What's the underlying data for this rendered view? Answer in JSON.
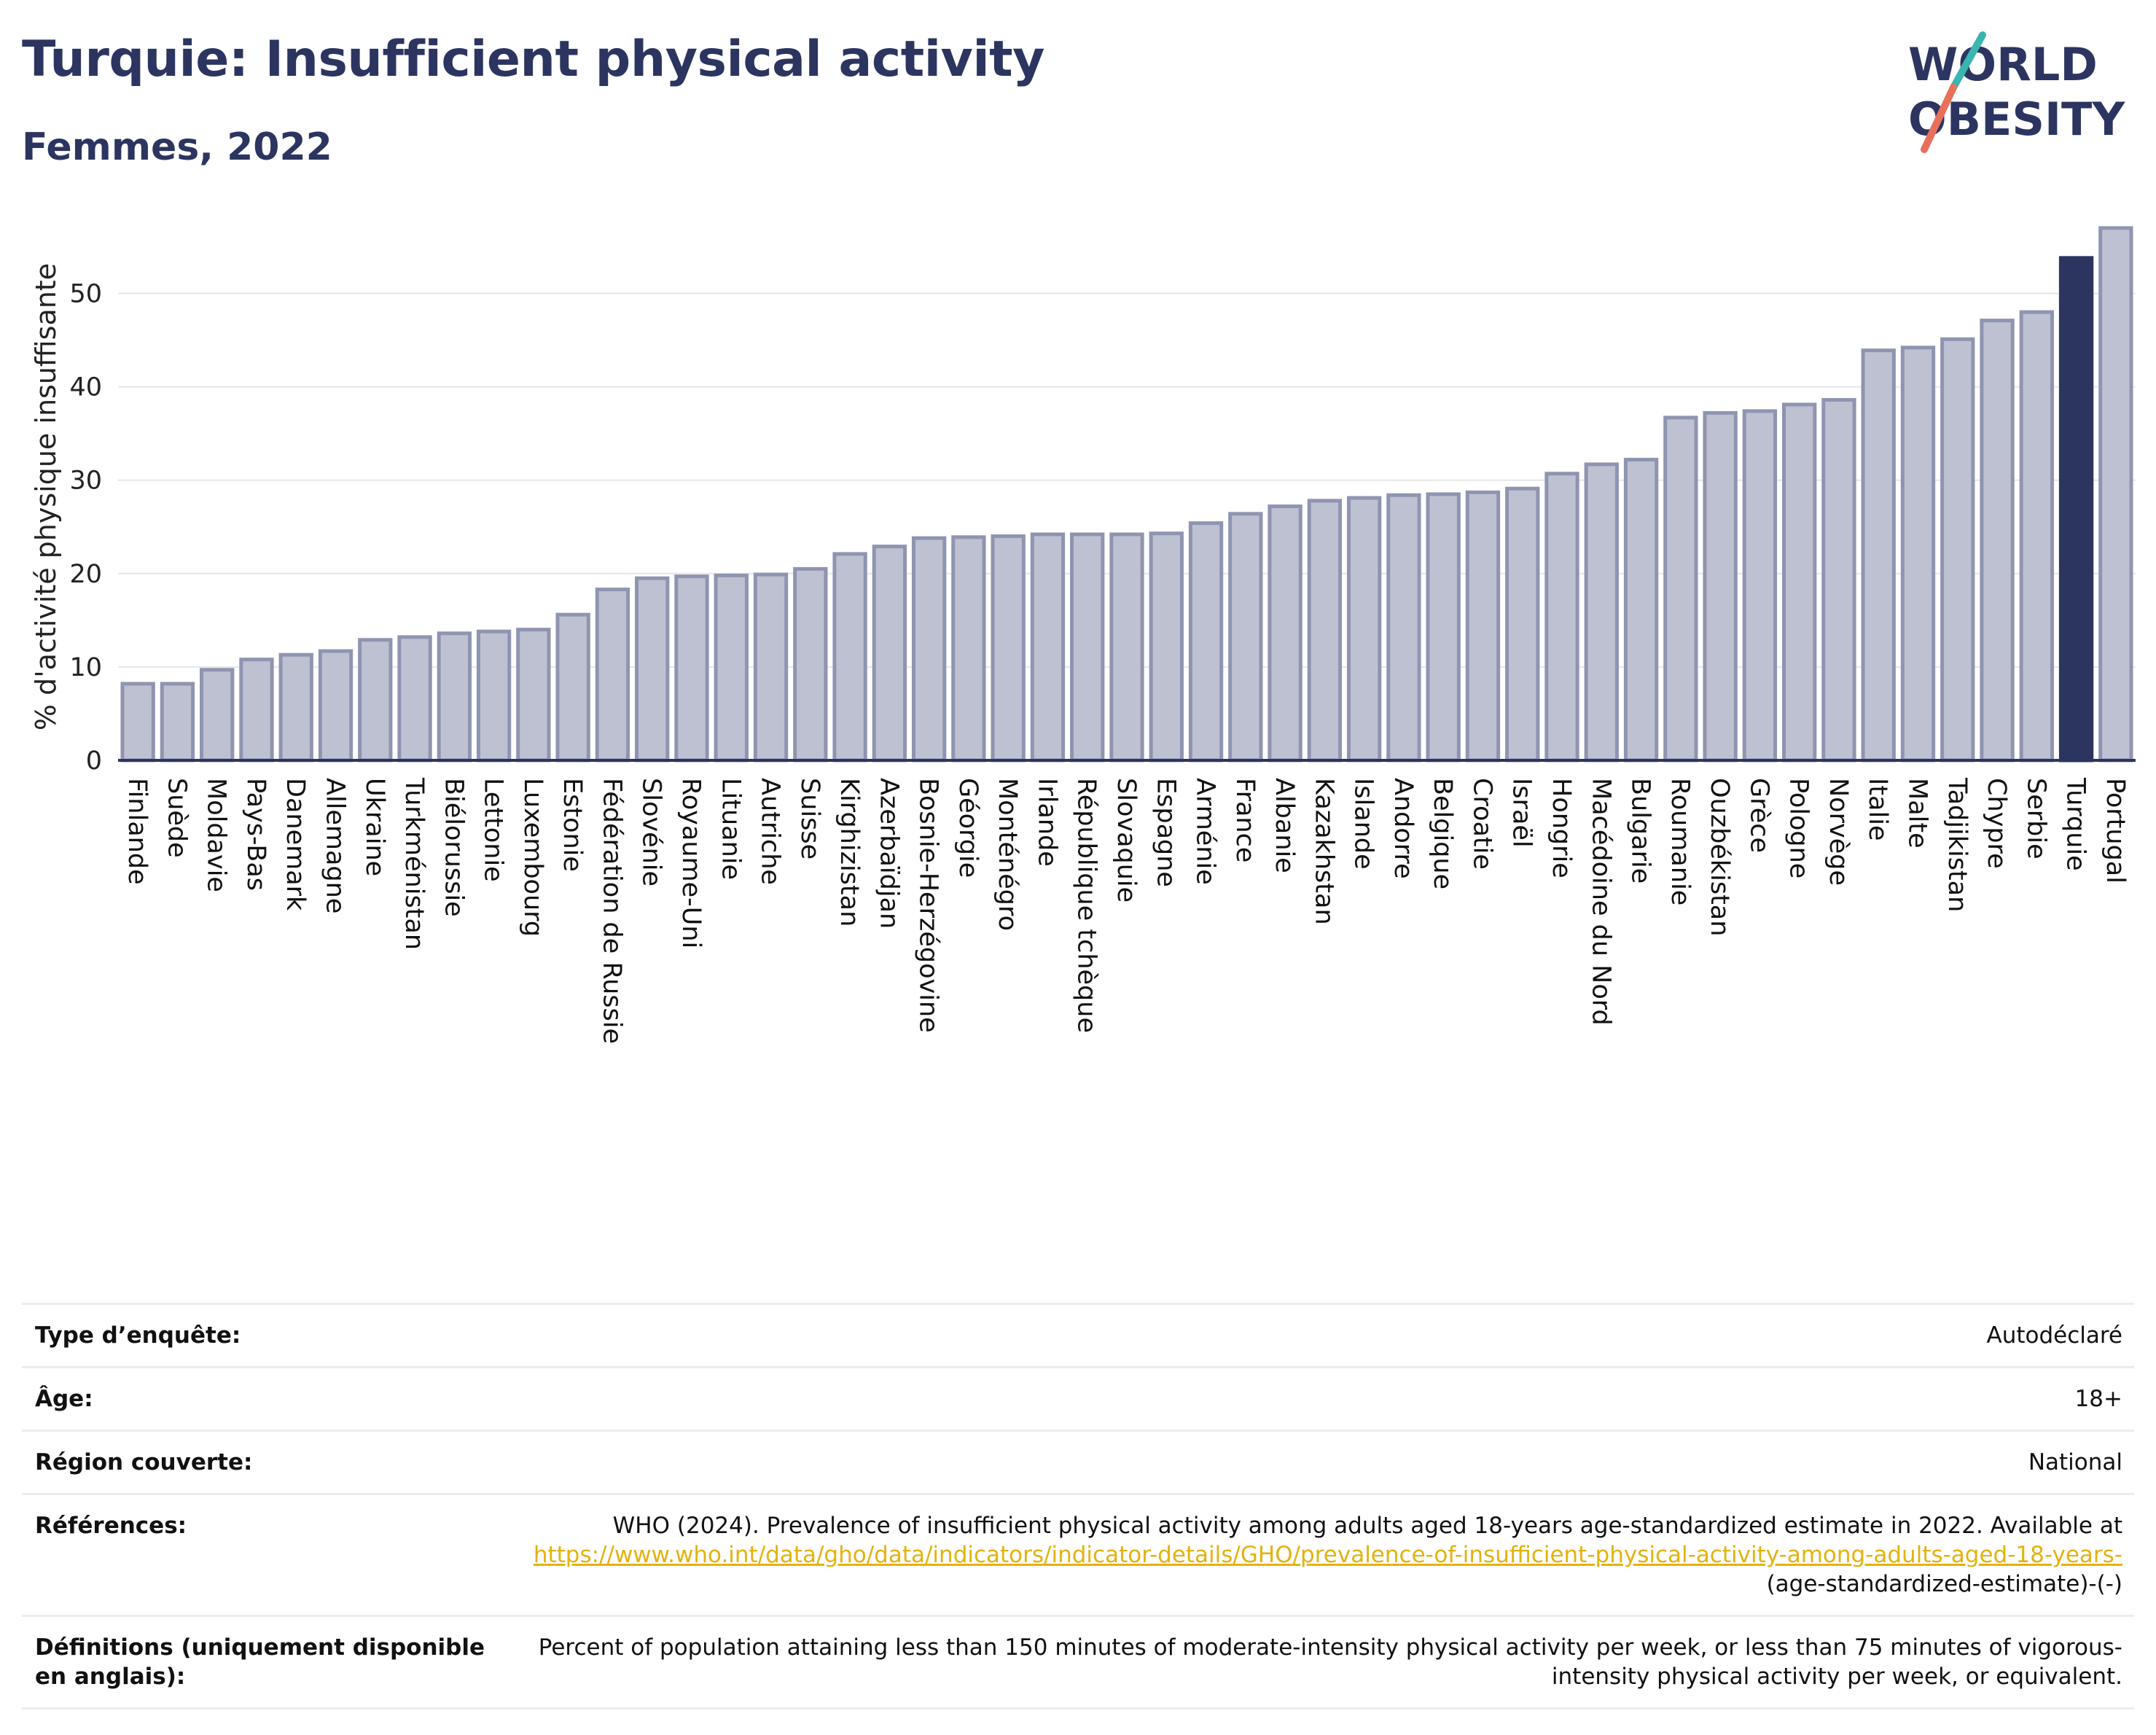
{
  "header": {
    "title": "Turquie: Insufficient physical activity",
    "subtitle": "Femmes, 2022"
  },
  "logo": {
    "line1": "WORLD",
    "line2": "OBESITY",
    "slash_colors": [
      "#3ab5b0",
      "#e8705b"
    ]
  },
  "colors": {
    "bar": "#bdc1d1",
    "bar_edge": "#8f95b0",
    "highlight": "#2c3560",
    "title": "#2c3560",
    "link": "#e3b20f"
  },
  "chart_data": {
    "type": "bar",
    "ylabel": "% d'activité physique insuffisante",
    "ylim": [
      0,
      58
    ],
    "yticks": [
      0,
      10,
      20,
      30,
      40,
      50
    ],
    "grid": true,
    "highlight": "Turquie",
    "categories": [
      "Finlande",
      "Suède",
      "Moldavie",
      "Pays-Bas",
      "Danemark",
      "Allemagne",
      "Ukraine",
      "Turkménistan",
      "Biélorussie",
      "Lettonie",
      "Luxembourg",
      "Estonie",
      "Fédération de Russie",
      "Slovénie",
      "Royaume-Uni",
      "Lituanie",
      "Autriche",
      "Suisse",
      "Kirghizistan",
      "Azerbaïdjan",
      "Bosnie-Herzégovine",
      "Géorgie",
      "Monténégro",
      "Irlande",
      "République tchèque",
      "Slovaquie",
      "Espagne",
      "Arménie",
      "France",
      "Albanie",
      "Kazakhstan",
      "Islande",
      "Andorre",
      "Belgique",
      "Croatie",
      "Israël",
      "Hongrie",
      "Macédoine du Nord",
      "Bulgarie",
      "Roumanie",
      "Ouzbékistan",
      "Grèce",
      "Pologne",
      "Norvège",
      "Italie",
      "Malte",
      "Tadjikistan",
      "Chypre",
      "Serbie",
      "Turquie",
      "Portugal"
    ],
    "values": [
      8.2,
      8.2,
      9.7,
      10.8,
      11.3,
      11.7,
      12.9,
      13.2,
      13.6,
      13.8,
      14.0,
      15.6,
      18.3,
      19.5,
      19.7,
      19.8,
      19.9,
      20.5,
      22.1,
      22.9,
      23.8,
      23.9,
      24.0,
      24.2,
      24.2,
      24.2,
      24.3,
      25.4,
      26.4,
      27.2,
      27.8,
      28.1,
      28.4,
      28.5,
      28.7,
      29.1,
      30.7,
      31.7,
      32.2,
      36.7,
      37.2,
      37.4,
      38.1,
      38.6,
      43.9,
      44.2,
      45.1,
      47.1,
      48.0,
      53.8,
      57.0
    ]
  },
  "metadata": [
    {
      "key": "Type d’enquête:",
      "value": "Autodéclaré"
    },
    {
      "key": "Âge:",
      "value": "18+"
    },
    {
      "key": "Région couverte:",
      "value": "National"
    },
    {
      "key": "Références:",
      "value_text": "WHO (2024). Prevalence of insufficient physical activity among adults aged 18-years age-standardized estimate in 2022. Available at ",
      "value_link": "https://www.who.int/data/gho/data/indicators/indicator-details/GHO/prevalence-of-insufficient-physical-activity-among-adults-aged-18-years-",
      "value_suffix": "(age-standardized-estimate)-(-)"
    },
    {
      "key": "Définitions (uniquement disponible en anglais):",
      "value": "Percent of population attaining less than 150 minutes of moderate-intensity physical activity per week, or less than 75 minutes of vigorous-intensity physical activity per week, or equivalent."
    }
  ]
}
